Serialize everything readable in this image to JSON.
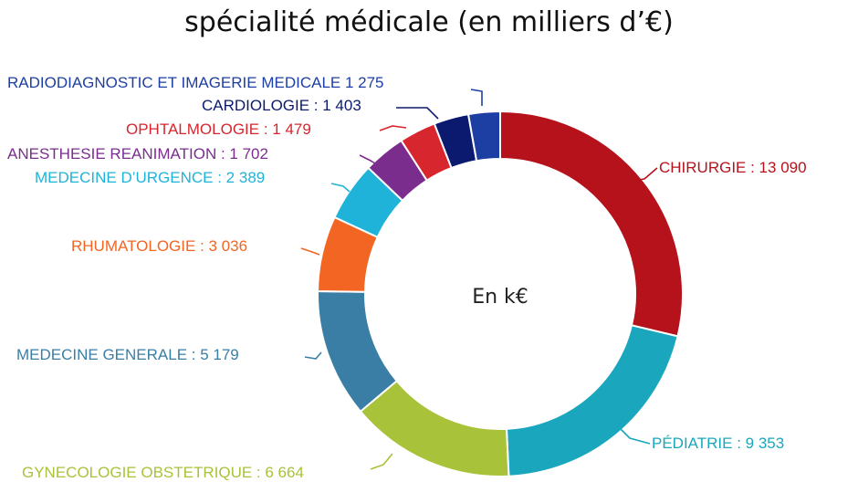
{
  "chart_data": {
    "type": "pie",
    "variant": "donut",
    "title": "spécialité médicale (en milliers d’€)",
    "center_label": "En k€",
    "slices": [
      {
        "key": "chirurgie",
        "label": "CHIRURGIE : 13 090",
        "value": 13090,
        "color": "#b5121b"
      },
      {
        "key": "pediatrie",
        "label": "PÉDIATRIE : 9 353",
        "value": 9353,
        "color": "#1aa7bd"
      },
      {
        "key": "gynecologie",
        "label": "GYNECOLOGIE OBSTETRIQUE : 6 664",
        "value": 6664,
        "color": "#a8c239"
      },
      {
        "key": "medecine-generale",
        "label": "MEDECINE GENERALE : 5 179",
        "value": 5179,
        "color": "#3a7ea6"
      },
      {
        "key": "rhumatologie",
        "label": "RHUMATOLOGIE : 3 036",
        "value": 3036,
        "color": "#f26522"
      },
      {
        "key": "medecine-urgence",
        "label": "MEDECINE D’URGENCE : 2 389",
        "value": 2389,
        "color": "#1fb3d9"
      },
      {
        "key": "anesthesie",
        "label": "ANESTHESIE REANIMATION : 1 702",
        "value": 1702,
        "color": "#7b2d8e"
      },
      {
        "key": "ophtalmologie",
        "label": "OPHTALMOLOGIE : 1 479",
        "value": 1479,
        "color": "#d7262e"
      },
      {
        "key": "cardiologie",
        "label": "CARDIOLOGIE : 1 403",
        "value": 1403,
        "color": "#0b1a6e"
      },
      {
        "key": "radiodiagnostic",
        "label": "RADIODIAGNOSTIC ET IMAGERIE MEDICALE 1 275",
        "value": 1275,
        "color": "#1d3fa3"
      }
    ]
  }
}
